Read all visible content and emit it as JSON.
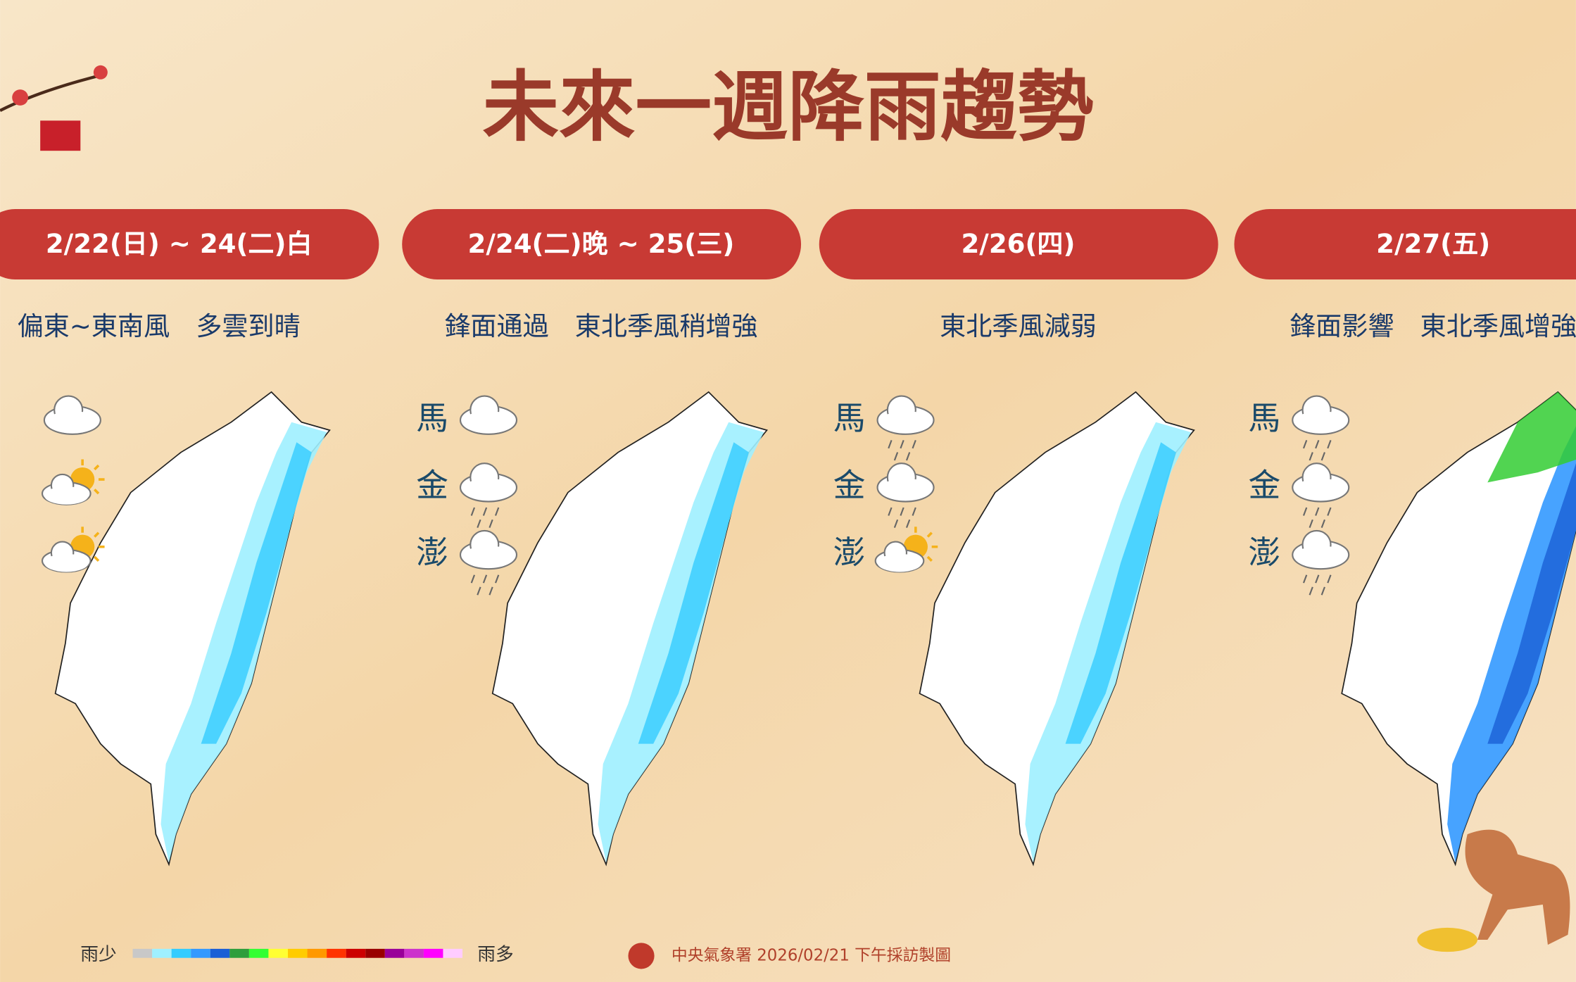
{
  "title": "未來一週降雨趨勢",
  "panels": [
    {
      "date": "2/22(日) ~ 24(二)白",
      "description": "偏東~東南風　多雲到晴"
    },
    {
      "date": "2/24(二)晚 ~ 25(三)",
      "description": "鋒面通過　東北季風稍增強",
      "islands": [
        "馬",
        "金",
        "澎"
      ]
    },
    {
      "date": "2/26(四)",
      "description": "東北季風減弱",
      "islands": [
        "馬",
        "金",
        "澎"
      ]
    },
    {
      "date": "2/27(五)",
      "description": "鋒面影響　東北季風增強",
      "islands": [
        "馬",
        "金",
        "澎"
      ]
    }
  ],
  "legend": {
    "low": "雨少",
    "high": "雨多",
    "colors": [
      "#c8c8c8",
      "#9ff0ff",
      "#33ccff",
      "#3399ff",
      "#1a5fd6",
      "#2e9e3c",
      "#33ff33",
      "#ffff33",
      "#ffcc00",
      "#ff9900",
      "#ff3300",
      "#cc0000",
      "#990000",
      "#990099",
      "#cc33cc",
      "#ff00ff",
      "#ffccff"
    ]
  },
  "footer": "中央氣象署 2026/02/21 下午採訪製圖"
}
